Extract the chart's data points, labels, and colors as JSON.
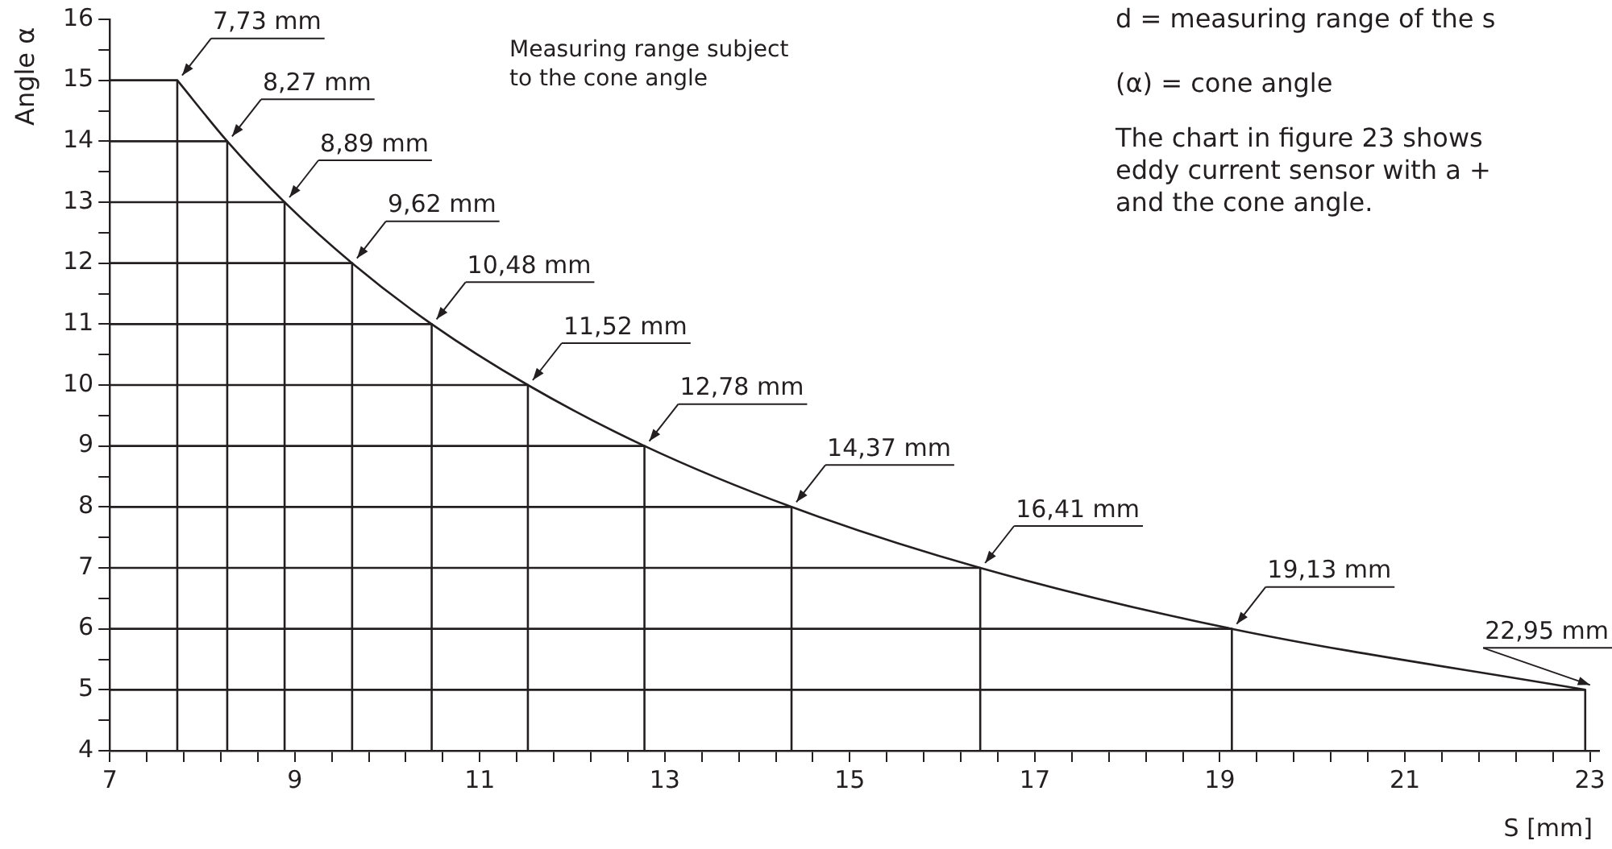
{
  "chart_data": {
    "type": "line",
    "xlabel": "S [mm]",
    "ylabel": "Angle α",
    "annotations": [
      "Measuring range subject to the cone angle",
      "d = measuring range of the s",
      "(α) = cone angle",
      "The chart in figure 23 shows",
      "eddy current sensor with a +",
      "and the cone angle.",
      {
        "text": "7,73 mm",
        "x": 7.73,
        "y": 15
      },
      {
        "text": "8,27 mm",
        "x": 8.27,
        "y": 14
      },
      {
        "text": "8,89 mm",
        "x": 8.89,
        "y": 13
      },
      {
        "text": "9,62 mm",
        "x": 9.62,
        "y": 12
      },
      {
        "text": "10,48 mm",
        "x": 10.48,
        "y": 11
      },
      {
        "text": "11,52 mm",
        "x": 11.52,
        "y": 10
      },
      {
        "text": "12,78 mm",
        "x": 12.78,
        "y": 9
      },
      {
        "text": "14,37 mm",
        "x": 14.37,
        "y": 8
      },
      {
        "text": "16,41 mm",
        "x": 16.41,
        "y": 7
      },
      {
        "text": "19,13 mm",
        "x": 19.13,
        "y": 6
      },
      {
        "text": "22,95 mm",
        "x": 22.95,
        "y": 5
      }
    ],
    "series": [
      {
        "color": "#231f20",
        "x": [
          7.73,
          8.27,
          8.89,
          9.62,
          10.48,
          11.52,
          12.78,
          14.37,
          16.41,
          19.13,
          22.95
        ],
        "values": [
          15,
          14,
          13,
          12,
          11,
          10,
          9,
          8,
          7,
          6,
          5
        ]
      },
      {
        "color": "#231f20",
        "x": [
          7,
          7.73,
          7.73
        ],
        "values": [
          15,
          15,
          4
        ]
      },
      {
        "color": "#231f20",
        "x": [
          7,
          8.27,
          8.27
        ],
        "values": [
          14,
          14,
          4
        ]
      },
      {
        "color": "#231f20",
        "x": [
          7,
          8.89,
          8.89
        ],
        "values": [
          13,
          13,
          4
        ]
      },
      {
        "color": "#231f20",
        "x": [
          7,
          9.62,
          9.62
        ],
        "values": [
          12,
          12,
          4
        ]
      },
      {
        "color": "#231f20",
        "x": [
          7,
          10.48,
          10.48
        ],
        "values": [
          11,
          11,
          4
        ]
      },
      {
        "color": "#231f20",
        "x": [
          7,
          11.52,
          11.52
        ],
        "values": [
          10,
          10,
          4
        ]
      },
      {
        "color": "#231f20",
        "x": [
          7,
          12.78,
          12.78
        ],
        "values": [
          9,
          9,
          4
        ]
      },
      {
        "color": "#231f20",
        "x": [
          7,
          14.37,
          14.37
        ],
        "values": [
          8,
          8,
          4
        ]
      },
      {
        "color": "#231f20",
        "x": [
          7,
          16.41,
          16.41
        ],
        "values": [
          7,
          7,
          4
        ]
      },
      {
        "color": "#231f20",
        "x": [
          7,
          19.13,
          19.13
        ],
        "values": [
          6,
          6,
          4
        ]
      },
      {
        "color": "#231f20",
        "x": [
          7,
          22.95,
          22.95
        ],
        "values": [
          5,
          5,
          4
        ]
      }
    ],
    "xlim": [
      7,
      23.1
    ],
    "ylim": [
      4,
      16
    ],
    "xticks": [
      7,
      {
        "value": 7.4,
        "label": null
      },
      {
        "value": 7.8,
        "label": null
      },
      {
        "value": 8.2,
        "label": null
      },
      {
        "value": 8.6,
        "label": null
      },
      9,
      {
        "value": 9.4,
        "label": null
      },
      {
        "value": 9.8,
        "label": null
      },
      {
        "value": 10.2,
        "label": null
      },
      {
        "value": 10.6,
        "label": null
      },
      11,
      {
        "value": 11.4,
        "label": null
      },
      {
        "value": 11.8,
        "label": null
      },
      {
        "value": 12.2,
        "label": null
      },
      {
        "value": 12.6,
        "label": null
      },
      13,
      {
        "value": 13.4,
        "label": null
      },
      {
        "value": 13.8,
        "label": null
      },
      {
        "value": 14.2,
        "label": null
      },
      {
        "value": 14.6,
        "label": null
      },
      15,
      {
        "value": 15.4,
        "label": null
      },
      {
        "value": 15.8,
        "label": null
      },
      {
        "value": 16.2,
        "label": null
      },
      {
        "value": 16.6,
        "label": null
      },
      17,
      {
        "value": 17.4,
        "label": null
      },
      {
        "value": 17.8,
        "label": null
      },
      {
        "value": 18.2,
        "label": null
      },
      {
        "value": 18.6,
        "label": null
      },
      19,
      {
        "value": 19.4,
        "label": null
      },
      {
        "value": 19.8,
        "label": null
      },
      {
        "value": 20.2,
        "label": null
      },
      {
        "value": 20.6,
        "label": null
      },
      21,
      {
        "value": 21.4,
        "label": null
      },
      {
        "value": 21.8,
        "label": null
      },
      {
        "value": 22.2,
        "label": null
      },
      {
        "value": 22.6,
        "label": null
      },
      23
    ],
    "yticks": [
      4,
      {
        "value": 4.5,
        "label": null
      },
      5,
      {
        "value": 5.5,
        "label": null
      },
      6,
      {
        "value": 6.5,
        "label": null
      },
      7,
      {
        "value": 7.5,
        "label": null
      },
      8,
      {
        "value": 8.5,
        "label": null
      },
      9,
      {
        "value": 9.5,
        "label": null
      },
      10,
      {
        "value": 10.5,
        "label": null
      },
      11,
      {
        "value": 11.5,
        "label": null
      },
      12,
      {
        "value": 12.5,
        "label": null
      },
      13,
      {
        "value": 13.5,
        "label": null
      },
      14,
      {
        "value": 14.5,
        "label": null
      },
      15,
      {
        "value": 15.5,
        "label": null
      },
      16
    ],
    "grid": false,
    "legend": false,
    "marker": "none",
    "line_style": "solid"
  }
}
